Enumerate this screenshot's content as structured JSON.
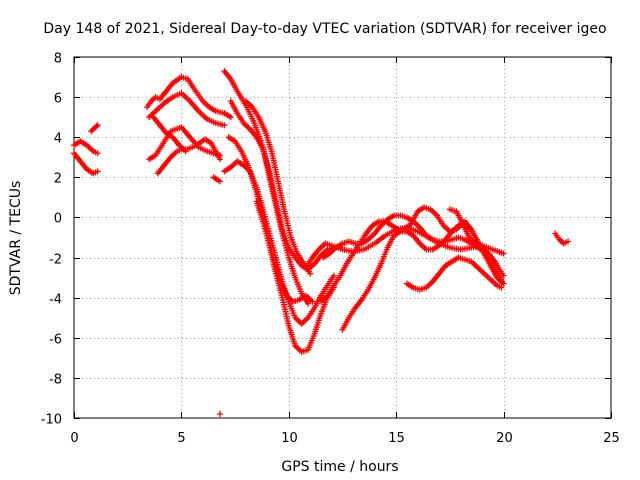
{
  "chart_data": {
    "type": "scatter",
    "title": "Day 148 of 2021, Sidereal Day-to-day VTEC variation (SDTVAR) for receiver igeo",
    "xlabel": "GPS time / hours",
    "ylabel": "SDTVAR / TECUs",
    "xlim": [
      0,
      25
    ],
    "ylim": [
      -10,
      8
    ],
    "xticks": [
      "0",
      "5",
      "10",
      "15",
      "20",
      "25"
    ],
    "yticks": [
      "-10",
      "-8",
      "-6",
      "-4",
      "-2",
      "0",
      "2",
      "4",
      "6",
      "8"
    ],
    "grid": true,
    "marker": "+",
    "color": "#ff0000",
    "series": [
      {
        "name": "t1",
        "x": [
          0.0,
          0.3,
          0.6,
          0.9,
          1.1
        ],
        "y": [
          3.2,
          2.8,
          2.4,
          2.2,
          2.3
        ]
      },
      {
        "name": "t2",
        "x": [
          0.0,
          0.3,
          0.6,
          0.9,
          1.1
        ],
        "y": [
          3.6,
          3.8,
          3.6,
          3.3,
          3.2
        ]
      },
      {
        "name": "t3",
        "x": [
          0.8,
          1.0,
          1.1
        ],
        "y": [
          4.3,
          4.5,
          4.6
        ]
      },
      {
        "name": "t4",
        "x": [
          3.4,
          3.6,
          3.8,
          4.0,
          4.3,
          4.6,
          5.0,
          5.3,
          5.6,
          6.0,
          6.3,
          6.6,
          7.0,
          7.3
        ],
        "y": [
          5.5,
          5.8,
          6.0,
          5.9,
          6.3,
          6.7,
          7.0,
          6.9,
          6.4,
          5.8,
          5.5,
          5.3,
          5.2,
          5.0
        ]
      },
      {
        "name": "t5",
        "x": [
          3.5,
          3.8,
          4.2,
          4.6,
          5.0,
          5.4,
          5.8,
          6.2,
          6.6,
          7.0
        ],
        "y": [
          5.0,
          5.3,
          5.7,
          6.0,
          6.2,
          5.8,
          5.3,
          4.9,
          4.7,
          4.6
        ]
      },
      {
        "name": "t6",
        "x": [
          3.5,
          3.8,
          4.1,
          4.5,
          5.0,
          5.4,
          5.8,
          6.2,
          6.5,
          6.8
        ],
        "y": [
          2.9,
          3.1,
          3.6,
          4.3,
          4.5,
          4.0,
          3.5,
          3.3,
          3.2,
          3.1
        ]
      },
      {
        "name": "t7",
        "x": [
          3.9,
          4.2,
          4.5,
          4.8,
          5.0,
          5.3,
          5.7,
          6.1,
          6.4,
          6.6,
          6.8
        ],
        "y": [
          2.2,
          2.6,
          3.0,
          3.3,
          3.4,
          3.4,
          3.6,
          3.9,
          3.7,
          3.3,
          2.9
        ]
      },
      {
        "name": "t8",
        "x": [
          3.7,
          4.0,
          4.3,
          4.6,
          4.9,
          5.2
        ],
        "y": [
          5.0,
          4.6,
          4.2,
          4.0,
          3.6,
          3.3
        ]
      },
      {
        "name": "t9",
        "x": [
          6.5,
          6.8
        ],
        "y": [
          2.0,
          1.8
        ]
      },
      {
        "name": "t10",
        "x": [
          7.0,
          7.3,
          7.6,
          8.0,
          8.4,
          8.8,
          9.1,
          9.4,
          9.7,
          10.0,
          10.3,
          10.6,
          10.9
        ],
        "y": [
          7.3,
          6.9,
          6.3,
          5.6,
          4.7,
          3.5,
          2.0,
          0.6,
          -0.8,
          -2.0,
          -3.0,
          -3.8,
          -4.3
        ]
      },
      {
        "name": "t11",
        "x": [
          7.3,
          7.6,
          7.9,
          8.2,
          8.5,
          8.8,
          9.1,
          9.4,
          9.7,
          10.0,
          10.3,
          10.6,
          10.9,
          11.2,
          11.5,
          11.8,
          12.1,
          12.4
        ],
        "y": [
          5.8,
          5.2,
          4.7,
          4.4,
          4.0,
          3.4,
          2.3,
          0.8,
          -0.6,
          -1.5,
          -2.0,
          -2.4,
          -2.6,
          -2.3,
          -1.9,
          -1.6,
          -1.5,
          -1.5
        ]
      },
      {
        "name": "t12",
        "x": [
          8.0,
          8.3,
          8.6,
          8.9,
          9.2,
          9.5,
          9.8,
          10.1,
          10.4,
          10.7,
          11.0
        ],
        "y": [
          5.8,
          5.5,
          5.0,
          4.3,
          3.3,
          1.8,
          0.3,
          -1.0,
          -1.8,
          -2.3,
          -2.8
        ]
      },
      {
        "name": "t13",
        "x": [
          7.2,
          7.5,
          7.8,
          8.1,
          8.4,
          8.7,
          9.0,
          9.3,
          9.6,
          9.9,
          10.2,
          10.5,
          10.8,
          11.1
        ],
        "y": [
          4.0,
          3.8,
          3.3,
          2.6,
          1.6,
          0.5,
          -0.8,
          -2.1,
          -3.2,
          -3.9,
          -4.2,
          -4.1,
          -3.9,
          -4.2
        ]
      },
      {
        "name": "t14",
        "x": [
          7.0,
          7.3,
          7.6,
          7.9,
          8.2,
          8.5,
          8.8,
          9.1,
          9.4,
          9.7,
          10.0,
          10.3,
          10.6,
          10.9,
          11.2,
          11.5,
          11.8,
          12.1
        ],
        "y": [
          2.3,
          2.5,
          2.8,
          2.6,
          2.3,
          1.5,
          0.4,
          -0.8,
          -2.0,
          -3.2,
          -4.2,
          -5.0,
          -5.3,
          -5.0,
          -4.5,
          -3.9,
          -3.4,
          -2.9
        ]
      },
      {
        "name": "t15",
        "x": [
          8.5,
          8.8,
          9.1,
          9.4,
          9.7,
          10.0,
          10.3,
          10.6,
          10.9,
          11.2,
          11.5,
          11.8,
          12.1
        ],
        "y": [
          0.8,
          -0.2,
          -1.4,
          -2.8,
          -4.0,
          -5.4,
          -6.4,
          -6.7,
          -6.6,
          -5.8,
          -4.8,
          -4.0,
          -3.5
        ]
      },
      {
        "name": "t16",
        "x": [
          10.8,
          11.1,
          11.4,
          11.7,
          12.0,
          12.5,
          13.0,
          13.5,
          14.0,
          14.5,
          15.0,
          15.5,
          16.0,
          16.5,
          17.0,
          17.5,
          18.0,
          18.5,
          19.0,
          19.5,
          20.0
        ],
        "y": [
          -2.5,
          -2.0,
          -1.6,
          -1.3,
          -1.4,
          -1.6,
          -1.7,
          -1.6,
          -1.3,
          -0.9,
          -0.6,
          -0.5,
          -0.7,
          -1.0,
          -1.3,
          -1.5,
          -1.6,
          -1.5,
          -1.4,
          -1.6,
          -1.8
        ]
      },
      {
        "name": "t17",
        "x": [
          11.6,
          11.9,
          12.2,
          12.5,
          12.8,
          13.1,
          13.4,
          13.7,
          14.0,
          14.3,
          14.6,
          14.9,
          15.2,
          15.5,
          15.8,
          16.1,
          16.4,
          16.7,
          17.0,
          17.3,
          17.6,
          17.9,
          18.2,
          18.5,
          18.8,
          19.1,
          19.4,
          19.7,
          20.0
        ],
        "y": [
          -2.0,
          -1.8,
          -1.5,
          -1.3,
          -1.2,
          -1.3,
          -1.3,
          -1.1,
          -0.8,
          -0.4,
          -0.1,
          0.1,
          0.1,
          0.0,
          -0.2,
          -0.5,
          -0.9,
          -1.1,
          -1.2,
          -1.2,
          -1.1,
          -1.0,
          -1.1,
          -1.3,
          -1.5,
          -1.7,
          -2.2,
          -2.8,
          -3.3
        ]
      },
      {
        "name": "t18",
        "x": [
          12.5,
          12.8,
          13.1,
          13.4,
          13.7,
          14.0,
          14.3,
          14.6,
          14.9,
          15.2,
          15.5,
          15.8,
          16.1,
          16.4,
          16.7,
          17.0,
          17.3,
          17.6,
          17.9,
          18.2,
          18.5,
          18.8,
          19.1,
          19.4,
          19.7,
          20.0
        ],
        "y": [
          -5.6,
          -5.0,
          -4.5,
          -4.1,
          -3.6,
          -3.0,
          -2.3,
          -1.5,
          -0.9,
          -0.7,
          -0.7,
          -0.9,
          -1.3,
          -1.6,
          -1.6,
          -1.4,
          -1.1,
          -0.7,
          -0.4,
          -0.2,
          -0.6,
          -1.2,
          -1.8,
          -2.4,
          -3.0,
          -3.3
        ]
      },
      {
        "name": "t19",
        "x": [
          11.5,
          11.8,
          12.1,
          12.4,
          12.7,
          13.0,
          13.3,
          13.6,
          13.9,
          14.2,
          14.5,
          14.8,
          15.1,
          15.4,
          15.7,
          16.0,
          16.3,
          16.6,
          16.9,
          17.2,
          17.5,
          17.8,
          18.1,
          18.4,
          18.7,
          19.0,
          19.3,
          19.6,
          19.9
        ],
        "y": [
          -4.2,
          -3.9,
          -3.4,
          -2.9,
          -2.3,
          -1.8,
          -1.3,
          -0.8,
          -0.4,
          -0.2,
          -0.2,
          -0.4,
          -0.6,
          -0.6,
          -0.3,
          0.3,
          0.5,
          0.4,
          0.1,
          -0.4,
          -0.7,
          -0.6,
          -0.3,
          -0.5,
          -1.0,
          -1.6,
          -2.2,
          -2.8,
          -3.2
        ]
      },
      {
        "name": "t20",
        "x": [
          15.5,
          15.8,
          16.1,
          16.4,
          16.7,
          17.0,
          17.3,
          17.6,
          17.9,
          18.2,
          18.5,
          18.8,
          19.1,
          19.4,
          19.7,
          19.9
        ],
        "y": [
          -3.3,
          -3.5,
          -3.6,
          -3.5,
          -3.2,
          -2.8,
          -2.4,
          -2.2,
          -2.0,
          -2.1,
          -2.2,
          -2.5,
          -2.8,
          -3.1,
          -3.4,
          -3.5
        ]
      },
      {
        "name": "t21",
        "x": [
          17.5,
          17.8,
          18.1,
          18.4,
          18.7,
          19.0,
          19.3,
          19.6,
          19.8,
          20.0
        ],
        "y": [
          0.4,
          0.3,
          -0.3,
          -1.0,
          -1.3,
          -1.5,
          -1.8,
          -2.2,
          -2.6,
          -2.9
        ]
      },
      {
        "name": "t22",
        "x": [
          22.4,
          22.6,
          22.8,
          23.0
        ],
        "y": [
          -0.8,
          -1.1,
          -1.3,
          -1.2
        ]
      },
      {
        "name": "t23",
        "x": [
          6.8
        ],
        "y": [
          -9.8
        ]
      }
    ]
  }
}
